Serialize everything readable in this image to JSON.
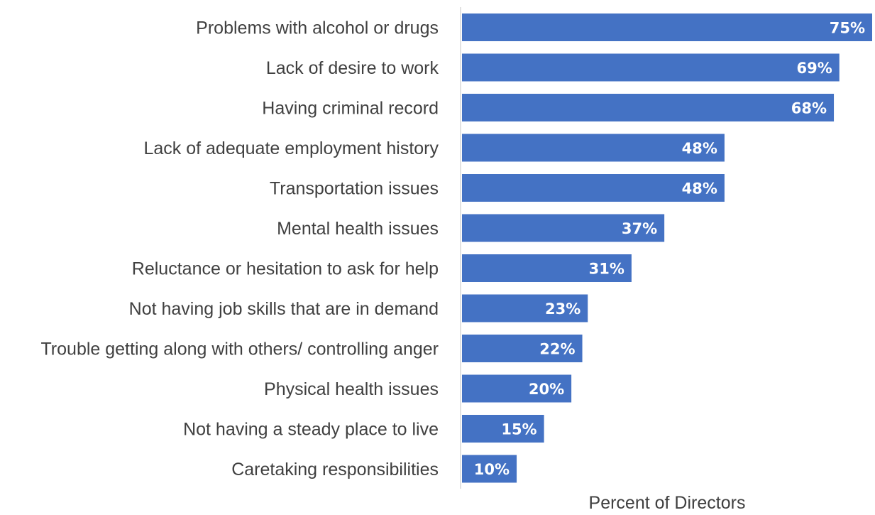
{
  "chart_data": {
    "type": "bar",
    "orientation": "horizontal",
    "categories": [
      "Problems with alcohol or drugs",
      "Lack of desire to work",
      "Having criminal record ",
      "Lack of adequate employment history",
      "Transportation issues",
      "Mental health issues",
      "Reluctance or hesitation to ask for help",
      "Not having job skills that are in demand",
      "Trouble getting along with others/ controlling anger",
      "Physical health issues",
      "Not having a steady place to live",
      "Caretaking responsibilities"
    ],
    "values": [
      75,
      69,
      68,
      48,
      48,
      37,
      31,
      23,
      22,
      20,
      15,
      10
    ],
    "value_labels": [
      "75%",
      "69%",
      "68%",
      "48%",
      "48%",
      "37%",
      "31%",
      "23%",
      "22%",
      "20%",
      "15%",
      "10%"
    ],
    "xlabel": "Percent of Directors",
    "bar_color": "#4472C4",
    "xlim": [
      0,
      75
    ],
    "grid": false
  }
}
